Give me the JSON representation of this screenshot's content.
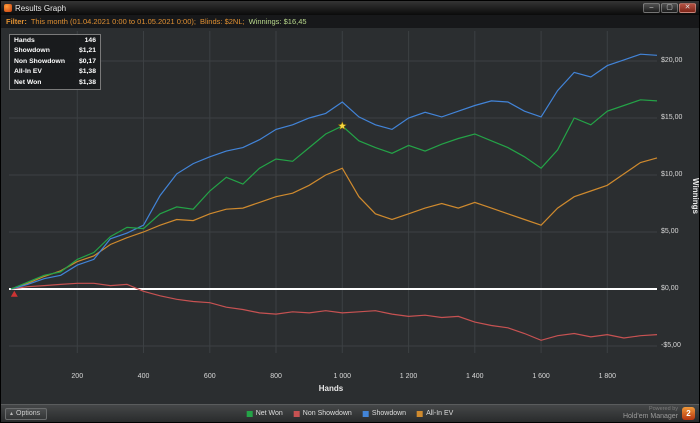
{
  "window": {
    "title": "Results Graph",
    "controls": {
      "minimize": "–",
      "maximize": "▢",
      "close": "✕"
    }
  },
  "filter_bar": {
    "label": "Filter:",
    "range": "This month (01.04.2021 0:00 to 01.05.2021 0:00);",
    "blinds": "Blinds: $2NL;",
    "winnings_label": "Winnings:",
    "winnings_value": "$16,45"
  },
  "stats_box": {
    "rows": [
      {
        "label": "Hands",
        "value": "146"
      },
      {
        "label": "Showdown",
        "value": "$1,21"
      },
      {
        "label": "Non Showdown",
        "value": "$0,17"
      },
      {
        "label": "All-In EV",
        "value": "$1,38"
      },
      {
        "label": "Net Won",
        "value": "$1,38"
      }
    ]
  },
  "chart_data": {
    "type": "line",
    "title": "Results Graph",
    "xlabel": "Hands",
    "ylabel": "Winnings",
    "xlim": [
      0,
      1950
    ],
    "ylim": [
      -6.5,
      22.5
    ],
    "grid": true,
    "grid_color": "#3c4043",
    "zero_line_color": "#ffffff",
    "background": "#2b2e30",
    "legend_position": "bottom",
    "x_ticks": [
      200,
      400,
      600,
      800,
      1000,
      1200,
      1400,
      1600,
      1800
    ],
    "x_tick_labels": [
      "200",
      "400",
      "600",
      "800",
      "1 000",
      "1 200",
      "1 400",
      "1 600",
      "1 800"
    ],
    "y_ticks": [
      20,
      15,
      10,
      5,
      0,
      -5
    ],
    "y_tick_labels": [
      "$20,00",
      "$15,00",
      "$10,00",
      "$5,00",
      "$0,00",
      "-$5,00"
    ],
    "x": [
      0,
      50,
      100,
      150,
      200,
      250,
      300,
      350,
      400,
      450,
      500,
      550,
      600,
      650,
      700,
      750,
      800,
      850,
      900,
      950,
      1000,
      1050,
      1100,
      1150,
      1200,
      1250,
      1300,
      1350,
      1400,
      1450,
      1500,
      1550,
      1600,
      1650,
      1700,
      1750,
      1800,
      1850,
      1900,
      1950
    ],
    "series": [
      {
        "name": "All-In EV",
        "color": "#cf8a2e",
        "y": [
          0,
          0.5,
          1.1,
          1.6,
          2.4,
          2.9,
          3.9,
          4.5,
          5.0,
          5.6,
          6.1,
          6.0,
          6.6,
          7.0,
          7.1,
          7.6,
          8.1,
          8.4,
          9.1,
          10.0,
          10.6,
          8.1,
          6.6,
          6.1,
          6.6,
          7.1,
          7.5,
          7.1,
          7.6,
          7.1,
          6.6,
          6.1,
          5.6,
          7.1,
          8.1,
          8.6,
          9.1,
          10.1,
          11.1,
          11.5
        ]
      },
      {
        "name": "Non Showdown",
        "color": "#c75252",
        "y": [
          0,
          0.2,
          0.3,
          0.4,
          0.5,
          0.5,
          0.3,
          0.4,
          -0.2,
          -0.6,
          -0.9,
          -1.1,
          -1.2,
          -1.6,
          -1.8,
          -2.1,
          -2.2,
          -2.0,
          -2.1,
          -1.9,
          -2.1,
          -2.0,
          -1.9,
          -2.2,
          -2.4,
          -2.3,
          -2.5,
          -2.4,
          -2.9,
          -3.2,
          -3.4,
          -3.9,
          -4.5,
          -4.1,
          -3.9,
          -4.2,
          -4.0,
          -4.3,
          -4.1,
          -4.0
        ]
      },
      {
        "name": "Showdown",
        "color": "#4284d8",
        "y": [
          0,
          0.4,
          0.9,
          1.2,
          2.1,
          2.6,
          4.4,
          4.9,
          5.6,
          8.2,
          10.1,
          11.0,
          11.6,
          12.1,
          12.4,
          13.1,
          14.0,
          14.4,
          15.0,
          15.4,
          16.4,
          15.1,
          14.4,
          14.0,
          15.0,
          15.5,
          15.1,
          15.6,
          16.1,
          16.5,
          16.4,
          15.6,
          15.1,
          17.4,
          19.0,
          18.6,
          19.6,
          20.1,
          20.6,
          20.5
        ]
      },
      {
        "name": "Net Won",
        "color": "#24a347",
        "y": [
          0,
          0.6,
          1.2,
          1.5,
          2.6,
          3.2,
          4.6,
          5.4,
          5.3,
          6.6,
          7.2,
          7.0,
          8.6,
          9.8,
          9.2,
          10.6,
          11.4,
          11.2,
          12.4,
          13.6,
          14.3,
          13.0,
          12.4,
          11.9,
          12.6,
          12.1,
          12.7,
          13.2,
          13.6,
          13.0,
          12.4,
          11.6,
          10.6,
          12.2,
          15.0,
          14.4,
          15.6,
          16.1,
          16.6,
          16.5
        ]
      }
    ],
    "markers": [
      {
        "type": "star",
        "x": 1000,
        "y": 14.3,
        "color": "#f7d842"
      },
      {
        "type": "triangle",
        "x": 10,
        "y": -0.5,
        "color": "#cc3333"
      }
    ]
  },
  "bottom_bar": {
    "options_label": "Options",
    "legend": [
      {
        "label": "Net Won",
        "color": "#24a347"
      },
      {
        "label": "Non Showdown",
        "color": "#c75252"
      },
      {
        "label": "Showdown",
        "color": "#4284d8"
      },
      {
        "label": "All-In EV",
        "color": "#cf8a2e"
      }
    ],
    "powered_by": "Powered by",
    "brand": "Hold'em Manager",
    "logo_text": "2"
  }
}
